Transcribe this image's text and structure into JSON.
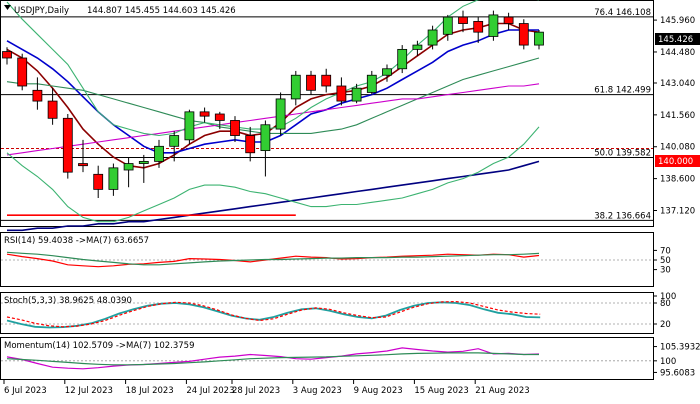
{
  "chart_data": [
    {
      "type": "candlestick",
      "panel": "price",
      "title": "USDJPY,Daily",
      "ohlc_header": "144.807 145.455 144.603 145.426",
      "last_price": "145.426",
      "ylim": [
        136.4,
        146.8
      ],
      "y_ticks": [
        "145.960",
        "144.480",
        "143.040",
        "141.560",
        "140.080",
        "138.600",
        "137.120"
      ],
      "x_ticks": [
        "6 Jul 2023",
        "12 Jul 2023",
        "18 Jul 2023",
        "24 Jul 2023",
        "28 Jul 2023",
        "3 Aug 2023",
        "9 Aug 2023",
        "15 Aug 2023",
        "21 Aug 2023"
      ],
      "candles": [
        {
          "o": 144.5,
          "h": 144.7,
          "l": 143.9,
          "c": 144.2
        },
        {
          "o": 144.2,
          "h": 144.4,
          "l": 142.7,
          "c": 142.9
        },
        {
          "o": 142.7,
          "h": 143.3,
          "l": 141.8,
          "c": 142.2
        },
        {
          "o": 142.2,
          "h": 142.8,
          "l": 141.1,
          "c": 141.4
        },
        {
          "o": 141.4,
          "h": 141.6,
          "l": 138.6,
          "c": 138.9
        },
        {
          "o": 139.3,
          "h": 140.4,
          "l": 138.9,
          "c": 139.2
        },
        {
          "o": 138.8,
          "h": 139.2,
          "l": 137.7,
          "c": 138.1
        },
        {
          "o": 138.1,
          "h": 139.3,
          "l": 137.8,
          "c": 139.1
        },
        {
          "o": 139.0,
          "h": 139.6,
          "l": 138.2,
          "c": 139.3
        },
        {
          "o": 139.3,
          "h": 139.7,
          "l": 138.4,
          "c": 139.4
        },
        {
          "o": 139.4,
          "h": 140.4,
          "l": 139.1,
          "c": 140.1
        },
        {
          "o": 140.1,
          "h": 140.8,
          "l": 139.4,
          "c": 140.6
        },
        {
          "o": 140.4,
          "h": 141.8,
          "l": 140.2,
          "c": 141.7
        },
        {
          "o": 141.7,
          "h": 141.9,
          "l": 141.2,
          "c": 141.5
        },
        {
          "o": 141.6,
          "h": 141.7,
          "l": 140.9,
          "c": 141.3
        },
        {
          "o": 141.3,
          "h": 141.5,
          "l": 140.3,
          "c": 140.6
        },
        {
          "o": 140.6,
          "h": 141.0,
          "l": 139.4,
          "c": 139.8
        },
        {
          "o": 139.9,
          "h": 141.3,
          "l": 138.7,
          "c": 141.1
        },
        {
          "o": 140.9,
          "h": 142.6,
          "l": 140.6,
          "c": 142.3
        },
        {
          "o": 142.3,
          "h": 143.6,
          "l": 142.0,
          "c": 143.4
        },
        {
          "o": 143.4,
          "h": 143.6,
          "l": 142.5,
          "c": 142.7
        },
        {
          "o": 143.4,
          "h": 143.7,
          "l": 142.6,
          "c": 142.9
        },
        {
          "o": 142.9,
          "h": 143.3,
          "l": 142.0,
          "c": 142.2
        },
        {
          "o": 142.2,
          "h": 143.0,
          "l": 142.1,
          "c": 142.8
        },
        {
          "o": 142.6,
          "h": 143.6,
          "l": 142.5,
          "c": 143.4
        },
        {
          "o": 143.4,
          "h": 143.9,
          "l": 143.1,
          "c": 143.7
        },
        {
          "o": 143.7,
          "h": 144.8,
          "l": 143.5,
          "c": 144.6
        },
        {
          "o": 144.6,
          "h": 145.0,
          "l": 144.3,
          "c": 144.8
        },
        {
          "o": 144.8,
          "h": 145.7,
          "l": 144.6,
          "c": 145.5
        },
        {
          "o": 145.3,
          "h": 146.2,
          "l": 145.0,
          "c": 146.1
        },
        {
          "o": 146.1,
          "h": 146.4,
          "l": 145.4,
          "c": 145.8
        },
        {
          "o": 145.9,
          "h": 146.1,
          "l": 144.9,
          "c": 145.4
        },
        {
          "o": 145.2,
          "h": 146.4,
          "l": 145.0,
          "c": 146.2
        },
        {
          "o": 146.1,
          "h": 146.3,
          "l": 145.5,
          "c": 145.8
        },
        {
          "o": 145.8,
          "h": 146.0,
          "l": 144.6,
          "c": 144.8
        },
        {
          "o": 144.8,
          "h": 145.5,
          "l": 144.6,
          "c": 145.4
        }
      ],
      "levels": [
        {
          "label": "76.4 146.108",
          "value": 146.108
        },
        {
          "label": "61.8 142.499",
          "value": 142.499
        },
        {
          "label": "50.0 139.582",
          "value": 139.582
        },
        {
          "label": "38.2 136.664",
          "value": 136.664
        }
      ],
      "reference_line": {
        "label": "140.000",
        "value": 140.0
      },
      "series": [
        {
          "color": "#8b0000",
          "values": [
            144.6,
            144.2,
            143.6,
            142.8,
            141.9,
            140.9,
            140.2,
            139.6,
            139.2,
            139.1,
            139.3,
            139.7,
            140.2,
            140.6,
            140.8,
            140.8,
            140.6,
            140.7,
            141.2,
            141.9,
            142.3,
            142.5,
            142.6,
            142.7,
            142.9,
            143.3,
            143.8,
            144.3,
            144.8,
            145.3,
            145.5,
            145.6,
            145.8,
            145.8,
            145.5,
            145.4
          ]
        },
        {
          "color": "#0000cc",
          "values": [
            145.0,
            144.6,
            144.2,
            143.7,
            143.1,
            142.4,
            141.7,
            141.1,
            140.6,
            140.1,
            139.8,
            139.8,
            140.0,
            140.2,
            140.3,
            140.4,
            140.3,
            140.3,
            140.6,
            141.1,
            141.6,
            141.8,
            142.1,
            142.3,
            142.5,
            142.8,
            143.2,
            143.6,
            144.0,
            144.5,
            144.8,
            145.0,
            145.3,
            145.5,
            145.5,
            145.5
          ]
        },
        {
          "color": "#2e8b57",
          "values": [
            143.1,
            143.0,
            143.0,
            142.9,
            142.8,
            142.7,
            142.5,
            142.3,
            142.1,
            141.9,
            141.7,
            141.5,
            141.3,
            141.2,
            141.0,
            140.9,
            140.8,
            140.7,
            140.7,
            140.7,
            140.7,
            140.8,
            140.9,
            141.1,
            141.4,
            141.7,
            142.0,
            142.3,
            142.6,
            142.9,
            143.2,
            143.4,
            143.6,
            143.8,
            144.0,
            144.2
          ]
        },
        {
          "color": "#cc00cc",
          "values": [
            139.7,
            139.8,
            139.9,
            140.0,
            140.1,
            140.2,
            140.3,
            140.4,
            140.5,
            140.6,
            140.7,
            140.8,
            140.9,
            141.0,
            141.1,
            141.2,
            141.3,
            141.4,
            141.5,
            141.6,
            141.7,
            141.8,
            141.9,
            142.0,
            142.1,
            142.2,
            142.3,
            142.3,
            142.4,
            142.5,
            142.6,
            142.7,
            142.8,
            142.9,
            142.9,
            143.0
          ]
        },
        {
          "color": "#000080",
          "values": [
            136.2,
            136.2,
            136.3,
            136.3,
            136.4,
            136.4,
            136.5,
            136.5,
            136.6,
            136.6,
            136.7,
            136.8,
            136.9,
            137.0,
            137.1,
            137.2,
            137.3,
            137.4,
            137.5,
            137.6,
            137.7,
            137.8,
            137.9,
            138.0,
            138.1,
            138.2,
            138.3,
            138.4,
            138.5,
            138.6,
            138.7,
            138.8,
            138.9,
            139.0,
            139.2,
            139.4
          ]
        },
        {
          "color": "#ff0000",
          "values": [
            136.9,
            136.9,
            136.9,
            136.9,
            136.9,
            136.9,
            136.9,
            136.9,
            136.9,
            136.9,
            136.9,
            136.9,
            136.9,
            136.9,
            136.9,
            136.9,
            136.9,
            136.9,
            136.9,
            136.9
          ]
        },
        {
          "color": "#3cb371",
          "values": [
            146.8,
            146.0,
            145.3,
            144.6,
            143.9,
            142.8,
            141.7,
            141.1,
            140.9,
            140.7,
            140.6,
            140.7,
            141.0,
            141.2,
            141.1,
            141.0,
            140.9,
            140.9,
            141.0,
            141.4,
            141.9,
            142.3,
            142.6,
            142.9,
            143.1,
            143.5,
            144.1,
            144.8,
            145.4,
            146.1,
            146.6,
            146.9,
            147.0,
            147.1,
            147.0,
            146.9
          ]
        },
        {
          "color": "#3cb371",
          "values": [
            139.8,
            139.2,
            138.7,
            138.1,
            137.3,
            136.8,
            136.6,
            136.6,
            136.8,
            137.1,
            137.4,
            137.7,
            138.1,
            138.3,
            138.3,
            138.2,
            138.0,
            137.9,
            137.7,
            137.5,
            137.3,
            137.3,
            137.4,
            137.4,
            137.5,
            137.6,
            137.7,
            137.9,
            138.1,
            138.4,
            138.6,
            138.9,
            139.3,
            139.6,
            140.2,
            141.0
          ]
        }
      ]
    },
    {
      "type": "line",
      "panel": "rsi",
      "title": "RSI(14) 59.4038 ->MA(7) 63.6657",
      "ylim": [
        0,
        100
      ],
      "y_ticks": [
        "70",
        "50",
        "30"
      ],
      "series": [
        {
          "name": "RSI(14)",
          "color": "#ff0000",
          "values": [
            62,
            57,
            53,
            48,
            40,
            38,
            36,
            38,
            41,
            42,
            45,
            47,
            53,
            52,
            51,
            49,
            46,
            50,
            54,
            58,
            56,
            55,
            52,
            53,
            55,
            56,
            58,
            59,
            60,
            62,
            61,
            60,
            62,
            61,
            56,
            59.4
          ]
        },
        {
          "name": "MA(7)",
          "color": "#2e8b57",
          "values": [
            66,
            64,
            62,
            59,
            55,
            51,
            48,
            45,
            42,
            40,
            40,
            42,
            44,
            46,
            48,
            49,
            50,
            51,
            51,
            52,
            53,
            54,
            54,
            55,
            55,
            55,
            56,
            56,
            57,
            58,
            59,
            60,
            61,
            61,
            62,
            63.7
          ]
        }
      ]
    },
    {
      "type": "line",
      "panel": "stochastic",
      "title": "Stoch(5,3,3) 38.9625 48.0390",
      "ylim": [
        0,
        100
      ],
      "y_ticks": [
        "100",
        "80",
        "20"
      ],
      "series": [
        {
          "name": "%K",
          "color": "#20a0a0",
          "values": [
            30,
            20,
            12,
            10,
            11,
            15,
            22,
            35,
            50,
            62,
            72,
            78,
            80,
            76,
            68,
            56,
            44,
            36,
            32,
            40,
            52,
            62,
            65,
            58,
            48,
            40,
            36,
            44,
            60,
            72,
            80,
            82,
            80,
            74,
            62,
            52,
            48,
            40,
            38.96
          ]
        },
        {
          "name": "%D",
          "color": "#ff0000",
          "values": [
            40,
            32,
            22,
            15,
            12,
            14,
            20,
            30,
            45,
            58,
            70,
            78,
            82,
            80,
            72,
            60,
            46,
            36,
            30,
            35,
            48,
            60,
            66,
            62,
            52,
            44,
            38,
            40,
            54,
            68,
            78,
            83,
            84,
            80,
            70,
            60,
            54,
            50,
            48.04
          ]
        }
      ]
    },
    {
      "type": "line",
      "panel": "momentum",
      "title": "Momentum(14) 102.5709 ->MA(7) 102.3759",
      "ylim": [
        93.5,
        107.5
      ],
      "y_ticks": [
        "105.3932",
        "100",
        "95.6083"
      ],
      "series": [
        {
          "name": "Momentum(14)",
          "color": "#cc00cc",
          "values": [
            101.5,
            100.5,
            99.0,
            97.6,
            97.2,
            97.0,
            97.4,
            98.0,
            98.4,
            98.6,
            99.0,
            99.4,
            99.8,
            100.6,
            101.4,
            101.8,
            102.4,
            102.0,
            101.6,
            100.8,
            100.6,
            101.2,
            101.8,
            102.6,
            103.1,
            103.7,
            104.9,
            104.3,
            103.7,
            103.3,
            103.6,
            104.6,
            102.6,
            102.8,
            102.4,
            102.57
          ]
        },
        {
          "name": "MA(7)",
          "color": "#2e8b57",
          "values": [
            100.8,
            100.5,
            100.2,
            99.8,
            99.4,
            99.0,
            98.7,
            98.5,
            98.5,
            98.6,
            98.8,
            99.0,
            99.3,
            99.6,
            100.0,
            100.4,
            100.8,
            101.0,
            101.2,
            101.3,
            101.4,
            101.5,
            101.7,
            101.9,
            102.1,
            102.3,
            102.6,
            102.8,
            102.9,
            103.0,
            103.0,
            103.0,
            102.8,
            102.6,
            102.4,
            102.38
          ]
        }
      ]
    }
  ]
}
